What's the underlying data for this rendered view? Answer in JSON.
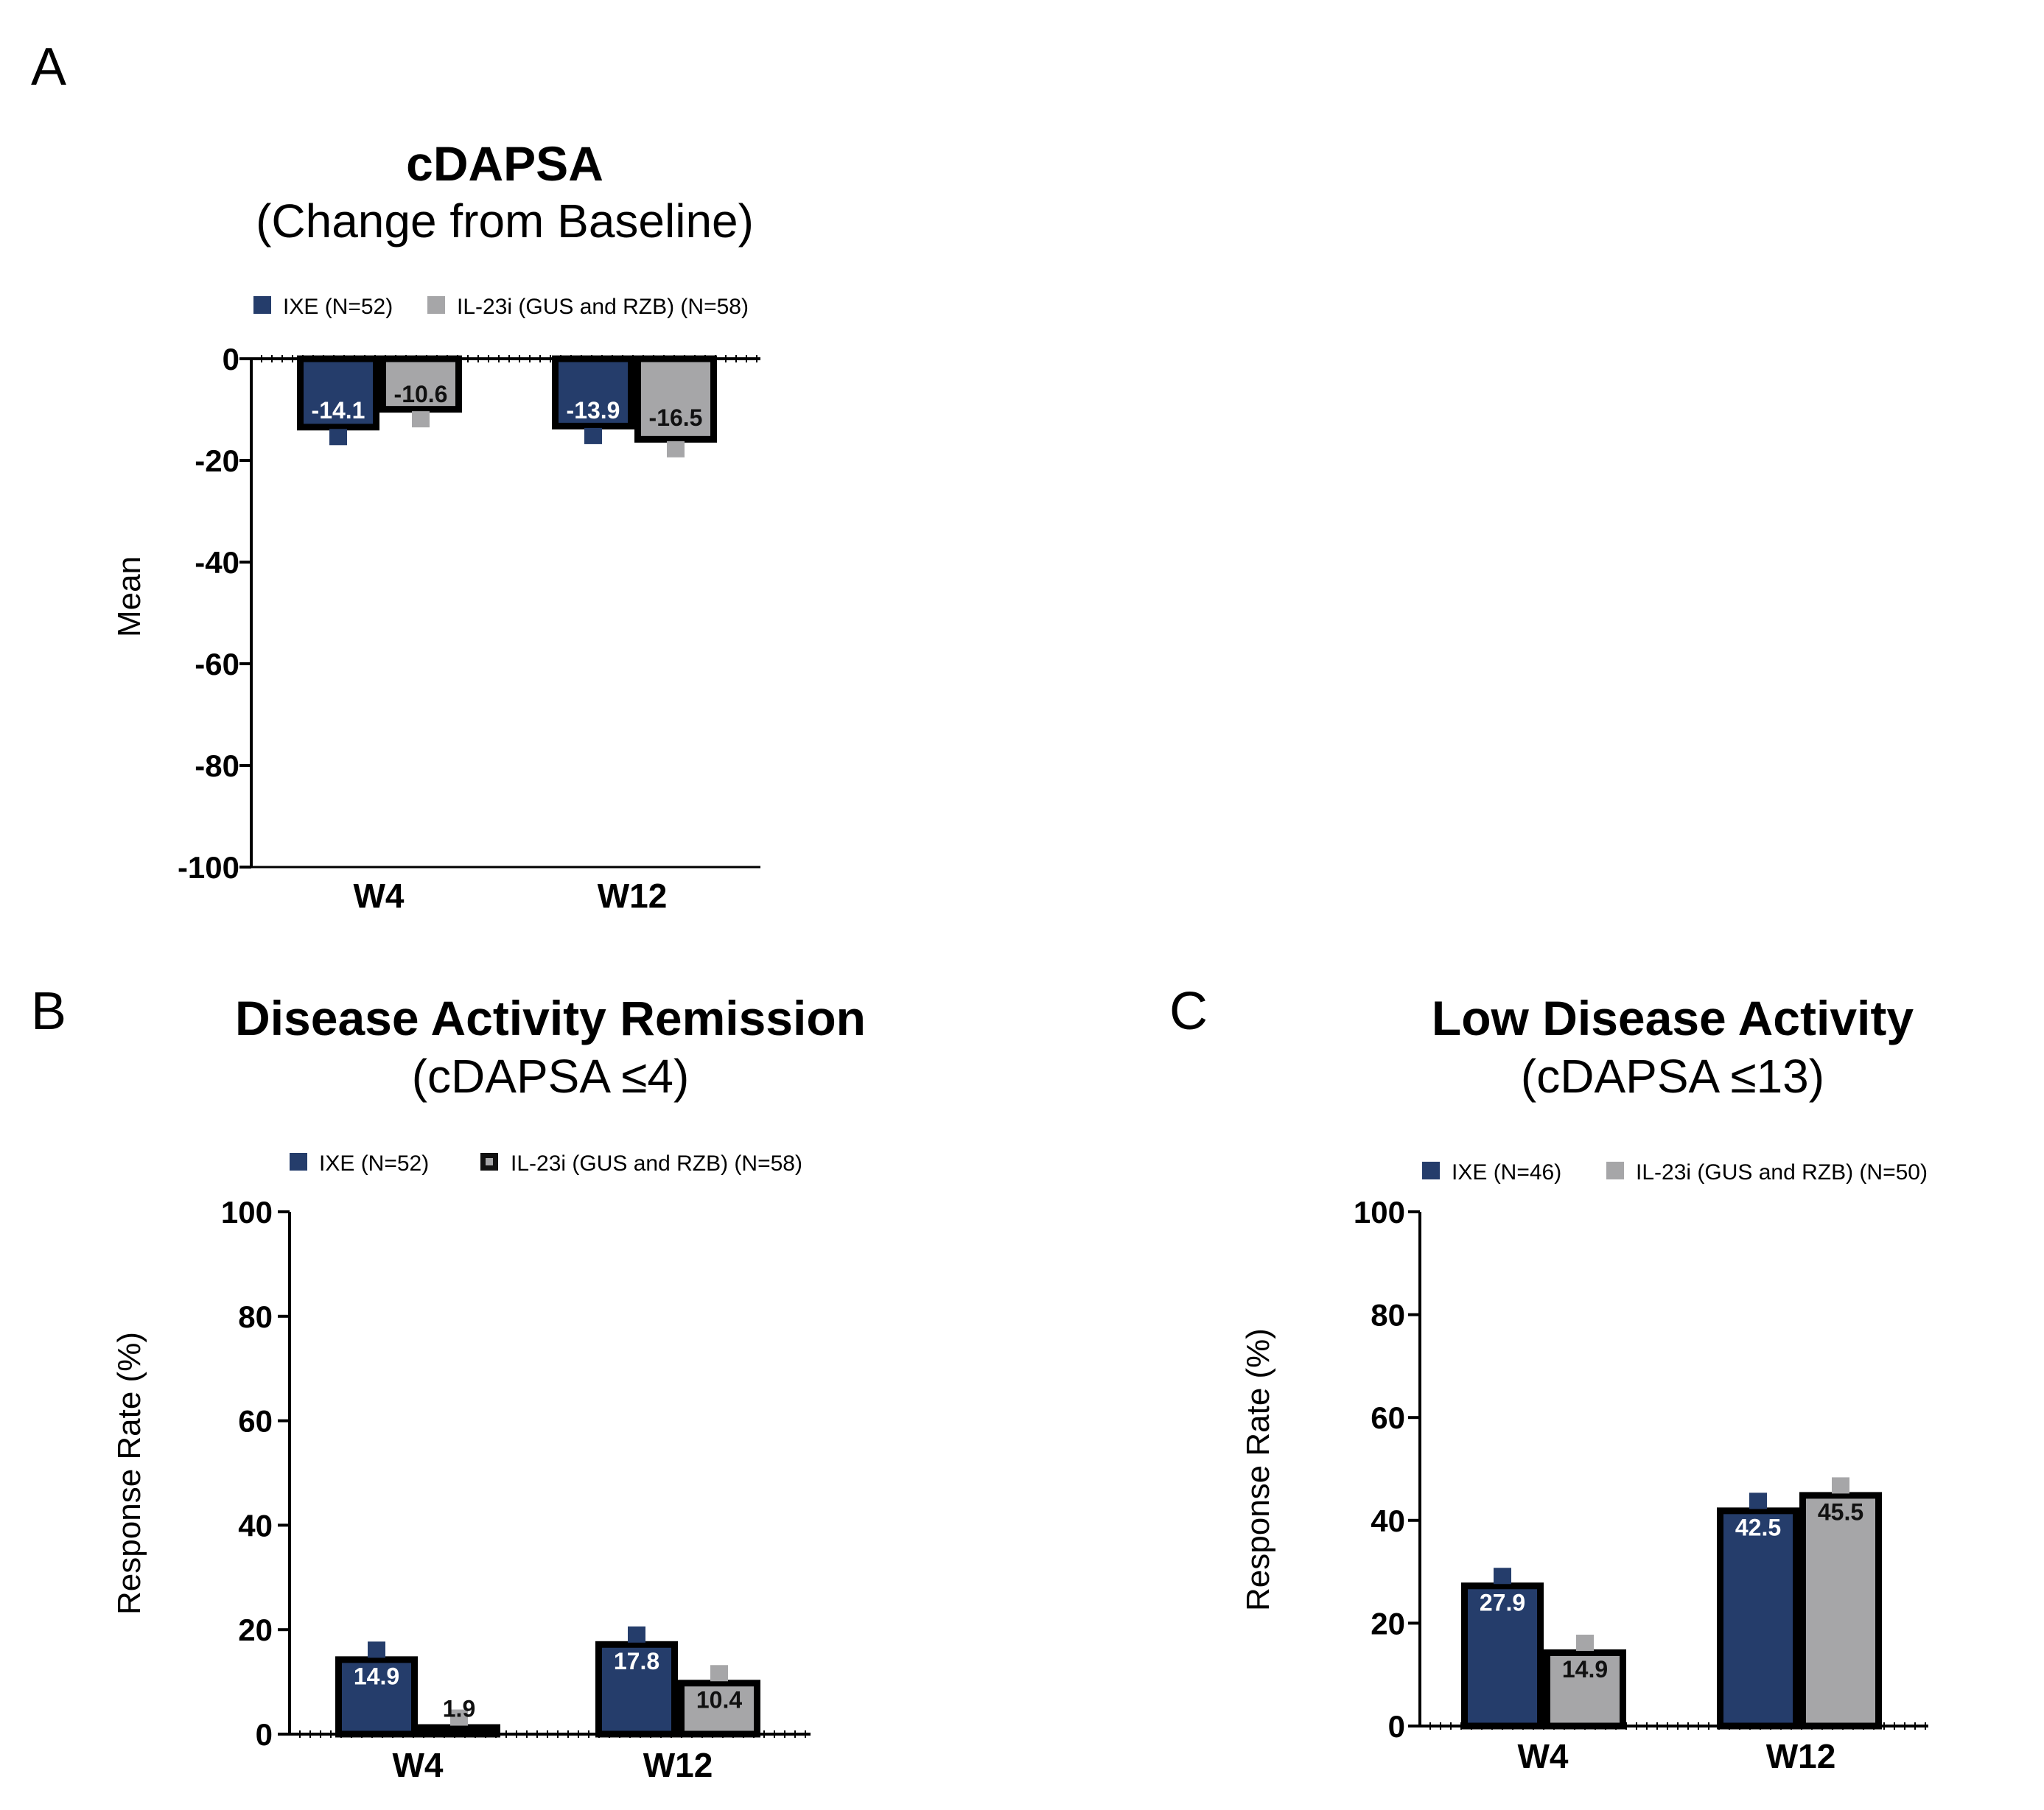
{
  "colors": {
    "ixe": "#253d6b",
    "il23": "#a6a6a8",
    "axis": "#000000"
  },
  "chart_data": [
    {
      "panel": "A",
      "type": "bar",
      "title": "cDAPSA",
      "subtitle": "(Change from Baseline)",
      "xlabel": "",
      "ylabel": "Mean",
      "ylim": [
        -100,
        0
      ],
      "yticks": [
        0,
        -20,
        -40,
        -60,
        -80,
        -100
      ],
      "categories": [
        "W4",
        "W12"
      ],
      "legend_position": "top",
      "legend_second_marker": "filled",
      "series": [
        {
          "name": "IXE (N=52)",
          "values": [
            -14.1,
            -13.9
          ],
          "labels": [
            "-14.1",
            "-13.9"
          ]
        },
        {
          "name": "IL-23i (GUS and RZB) (N=58)",
          "values": [
            -10.6,
            -16.5
          ],
          "labels": [
            "-10.6",
            "-16.5"
          ]
        }
      ]
    },
    {
      "panel": "B",
      "type": "bar",
      "title": "Disease Activity Remission",
      "subtitle": "(cDAPSA ≤4)",
      "xlabel": "",
      "ylabel": "Response Rate (%)",
      "ylim": [
        0,
        100
      ],
      "yticks": [
        0,
        20,
        40,
        60,
        80,
        100
      ],
      "categories": [
        "W4",
        "W12"
      ],
      "legend_position": "top",
      "legend_second_marker": "outlined",
      "series": [
        {
          "name": "IXE (N=52)",
          "values": [
            14.9,
            17.8
          ],
          "labels": [
            "14.9",
            "17.8"
          ]
        },
        {
          "name": "IL-23i (GUS and RZB) (N=58)",
          "values": [
            1.9,
            10.4
          ],
          "labels": [
            "1.9",
            "10.4"
          ]
        }
      ]
    },
    {
      "panel": "C",
      "type": "bar",
      "title": "Low Disease Activity",
      "subtitle": "(cDAPSA ≤13)",
      "xlabel": "",
      "ylabel": "Response Rate (%)",
      "ylim": [
        0,
        100
      ],
      "yticks": [
        0,
        20,
        40,
        60,
        80,
        100
      ],
      "categories": [
        "W4",
        "W12"
      ],
      "legend_position": "top",
      "legend_second_marker": "filled",
      "series": [
        {
          "name": "IXE (N=46)",
          "values": [
            27.9,
            42.5
          ],
          "labels": [
            "27.9",
            "42.5"
          ]
        },
        {
          "name": "IL-23i (GUS and RZB) (N=50)",
          "values": [
            14.9,
            45.5
          ],
          "labels": [
            "14.9",
            "45.5"
          ]
        }
      ]
    }
  ]
}
